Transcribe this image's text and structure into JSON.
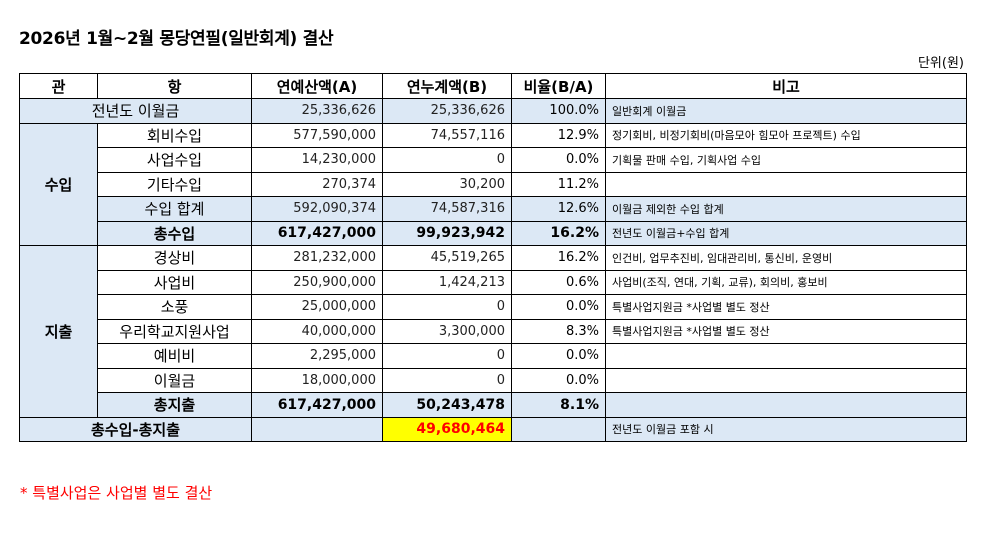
{
  "title": "2026년 1월~2월 몽당연필(일반회계) 결산",
  "unit": "단위(원)",
  "headers": [
    "관",
    "항",
    "연예산액(A)",
    "연누계액(B)",
    "비율(B/A)",
    "비고"
  ],
  "carryover": {
    "label": "전년도 이월금",
    "budget": "25,336,626",
    "actual": "25,336,626",
    "ratio": "100.0%",
    "memo": "일반회계 이월금"
  },
  "income": {
    "group": "수입",
    "rows": [
      {
        "item": "회비수입",
        "budget": "577,590,000",
        "actual": "74,557,116",
        "ratio": "12.9%",
        "memo": "정기회비, 비정기회비(마음모아 힘모아 프로젝트) 수입"
      },
      {
        "item": "사업수입",
        "budget": "14,230,000",
        "actual": "0",
        "ratio": "0.0%",
        "memo": "기획물 판매 수입, 기획사업 수입"
      },
      {
        "item": "기타수입",
        "budget": "270,374",
        "actual": "30,200",
        "ratio": "11.2%",
        "memo": ""
      }
    ],
    "subtotal": {
      "item": "수입 합계",
      "budget": "592,090,374",
      "actual": "74,587,316",
      "ratio": "12.6%",
      "memo": "이월금 제외한 수입 합계"
    },
    "total": {
      "item": "총수입",
      "budget": "617,427,000",
      "actual": "99,923,942",
      "ratio": "16.2%",
      "memo": "전년도 이월금+수입 합계"
    }
  },
  "expense": {
    "group": "지출",
    "rows": [
      {
        "item": "경상비",
        "budget": "281,232,000",
        "actual": "45,519,265",
        "ratio": "16.2%",
        "memo": "인건비, 업무추진비, 임대관리비, 통신비, 운영비"
      },
      {
        "item": "사업비",
        "budget": "250,900,000",
        "actual": "1,424,213",
        "ratio": "0.6%",
        "memo": "사업비(조직, 연대, 기획, 교류), 회의비, 홍보비"
      },
      {
        "item": "소풍",
        "budget": "25,000,000",
        "actual": "0",
        "ratio": "0.0%",
        "memo": "특별사업지원금 *사업별 별도 정산"
      },
      {
        "item": "우리학교지원사업",
        "budget": "40,000,000",
        "actual": "3,300,000",
        "ratio": "8.3%",
        "memo": "특별사업지원금 *사업별 별도 정산"
      },
      {
        "item": "예비비",
        "budget": "2,295,000",
        "actual": "0",
        "ratio": "0.0%",
        "memo": ""
      },
      {
        "item": "이월금",
        "budget": "18,000,000",
        "actual": "0",
        "ratio": "0.0%",
        "memo": ""
      }
    ],
    "total": {
      "item": "총지출",
      "budget": "617,427,000",
      "actual": "50,243,478",
      "ratio": "8.1%",
      "memo": ""
    }
  },
  "balance": {
    "label": "총수입-총지출",
    "budget": "",
    "actual": "49,680,464",
    "ratio": "",
    "memo": "전년도 이월금 포함 시"
  },
  "footnote": "* 특별사업은 사업별 별도 결산",
  "colors": {
    "header_bg": "#ffffff",
    "shade": "#dce8f5",
    "highlight": "#ffff00",
    "highlight_text": "#ff0000",
    "footnote": "#ff0000"
  }
}
